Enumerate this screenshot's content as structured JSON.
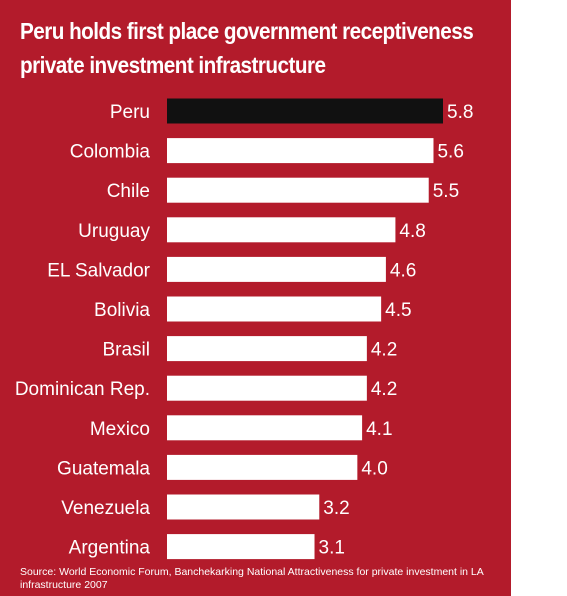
{
  "colors": {
    "background": "#b31b2b",
    "highlight_bar": "#111111",
    "bar": "#ffffff",
    "text": "#ffffff"
  },
  "chart_data": {
    "type": "bar",
    "orientation": "horizontal",
    "title_lines": [
      "Peru holds first place government receptiveness",
      "private investment infrastructure"
    ],
    "categories": [
      "Peru",
      "Colombia",
      "Chile",
      "Uruguay",
      "EL Salvador",
      "Bolivia",
      "Brasil",
      "Dominican Rep.",
      "Mexico",
      "Guatemala",
      "Venezuela",
      "Argentina"
    ],
    "values": [
      5.8,
      5.6,
      5.5,
      4.8,
      4.6,
      4.5,
      4.2,
      4.2,
      4.1,
      4.0,
      3.2,
      3.1
    ],
    "value_labels": [
      "5.8",
      "5.6",
      "5.5",
      "4.8",
      "4.6",
      "4.5",
      "4.2",
      "4.2",
      "4.1",
      "4.0",
      "3.2",
      "3.1"
    ],
    "highlighted_category": "Peru",
    "xlim": [
      0,
      5.8
    ],
    "grid": false,
    "legend": "none",
    "source_note": "Source: World Economic Forum, Banchekarking National Attractiveness for private investment in LA infrastructure 2007"
  }
}
